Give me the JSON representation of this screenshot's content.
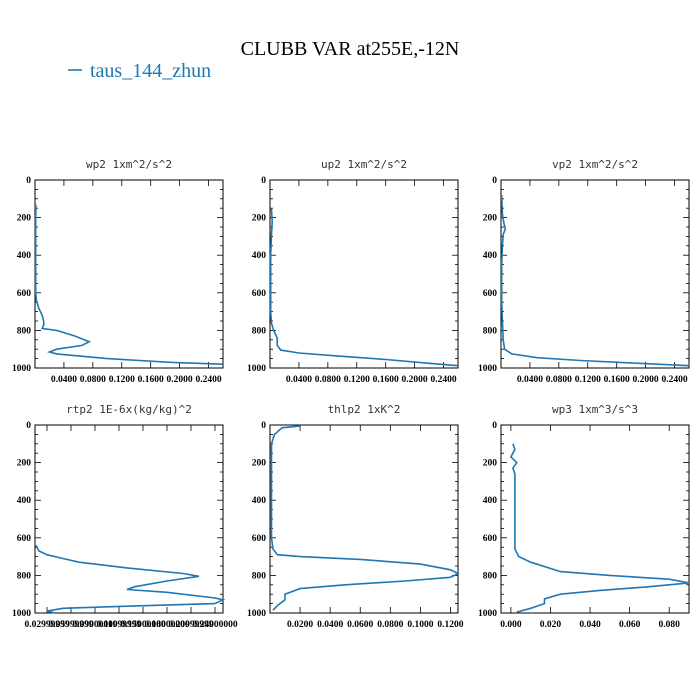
{
  "title": "CLUBB VAR at255E,-12N",
  "legend": {
    "label": "taus_144_zhun",
    "color": "#1f77b4"
  },
  "chart_data": [
    {
      "type": "line",
      "title": "wp2  1xm^2/s^2",
      "ylim": [
        1000,
        0
      ],
      "xlim": [
        0,
        0.26
      ],
      "yticks": [
        0,
        200,
        400,
        600,
        800,
        1000
      ],
      "xticks": [
        0.04,
        0.08,
        0.12,
        0.16,
        0.2,
        0.24
      ],
      "xticklabels": [
        "0.0400",
        "0.0800",
        "0.1200",
        "0.1600",
        "0.2000",
        "0.2400"
      ],
      "series": [
        {
          "values": [
            [
              0.001,
              130
            ],
            [
              0.0012,
              160
            ],
            [
              0.001,
              200
            ],
            [
              0.001,
              250
            ],
            [
              0.001,
              320
            ],
            [
              0.001,
              400
            ],
            [
              0.001,
              500
            ],
            [
              0.001,
              600
            ],
            [
              0.002,
              640
            ],
            [
              0.005,
              680
            ],
            [
              0.01,
              720
            ],
            [
              0.012,
              750
            ],
            [
              0.012,
              770
            ],
            [
              0.01,
              790
            ],
            [
              0.03,
              800
            ],
            [
              0.055,
              830
            ],
            [
              0.075,
              860
            ],
            [
              0.065,
              880
            ],
            [
              0.03,
              900
            ],
            [
              0.02,
              915
            ],
            [
              0.03,
              925
            ],
            [
              0.1,
              950
            ],
            [
              0.19,
              970
            ],
            [
              0.26,
              980
            ]
          ]
        }
      ]
    },
    {
      "type": "line",
      "title": "up2  1xm^2/s^2",
      "ylim": [
        1000,
        0
      ],
      "xlim": [
        0,
        0.26
      ],
      "yticks": [
        0,
        200,
        400,
        600,
        800,
        1000
      ],
      "xticks": [
        0.04,
        0.08,
        0.12,
        0.16,
        0.2,
        0.24
      ],
      "xticklabels": [
        "0.0400",
        "0.0800",
        "0.1200",
        "0.1600",
        "0.2000",
        "0.2400"
      ],
      "series": [
        {
          "values": [
            [
              0.002,
              150
            ],
            [
              0.003,
              220
            ],
            [
              0.002,
              300
            ],
            [
              0.001,
              400
            ],
            [
              0.001,
              500
            ],
            [
              0.001,
              600
            ],
            [
              0.001,
              700
            ],
            [
              0.002,
              760
            ],
            [
              0.005,
              800
            ],
            [
              0.01,
              840
            ],
            [
              0.01,
              880
            ],
            [
              0.015,
              905
            ],
            [
              0.04,
              920
            ],
            [
              0.09,
              935
            ],
            [
              0.16,
              955
            ],
            [
              0.22,
              975
            ],
            [
              0.26,
              988
            ]
          ]
        }
      ]
    },
    {
      "type": "line",
      "title": "vp2  1xm^2/s^2",
      "ylim": [
        1000,
        0
      ],
      "xlim": [
        0,
        0.26
      ],
      "yticks": [
        0,
        200,
        400,
        600,
        800,
        1000
      ],
      "xticks": [
        0.04,
        0.08,
        0.12,
        0.16,
        0.2,
        0.24
      ],
      "xticklabels": [
        "0.0400",
        "0.0800",
        "0.1200",
        "0.1600",
        "0.2000",
        "0.2400"
      ],
      "series": [
        {
          "values": [
            [
              0.001,
              80
            ],
            [
              0.002,
              180
            ],
            [
              0.004,
              230
            ],
            [
              0.006,
              260
            ],
            [
              0.003,
              290
            ],
            [
              0.002,
              350
            ],
            [
              0.001,
              450
            ],
            [
              0.001,
              550
            ],
            [
              0.001,
              650
            ],
            [
              0.002,
              750
            ],
            [
              0.003,
              850
            ],
            [
              0.005,
              900
            ],
            [
              0.015,
              925
            ],
            [
              0.05,
              945
            ],
            [
              0.11,
              960
            ],
            [
              0.19,
              975
            ],
            [
              0.26,
              988
            ]
          ]
        }
      ]
    },
    {
      "type": "line",
      "title": "rtp2  1E-6x(kg/kg)^2",
      "ylim": [
        1000,
        0
      ],
      "xlim": [
        0.015,
        0.25
      ],
      "yticks": [
        0,
        200,
        400,
        600,
        800,
        1000
      ],
      "xticks": [
        0.03,
        0.06,
        0.09,
        0.12,
        0.15,
        0.18,
        0.21,
        0.24
      ],
      "xticklabels": [
        "0.02999999",
        "0.05999999",
        "0.09000000",
        "0.11999999",
        "0.15000000",
        "0.18000000",
        "0.20999999",
        "0.24000000"
      ],
      "series": [
        {
          "values": [
            [
              0.016,
              640
            ],
            [
              0.02,
              670
            ],
            [
              0.03,
              690
            ],
            [
              0.05,
              710
            ],
            [
              0.07,
              730
            ],
            [
              0.13,
              760
            ],
            [
              0.2,
              790
            ],
            [
              0.22,
              805
            ],
            [
              0.18,
              830
            ],
            [
              0.14,
              860
            ],
            [
              0.13,
              875
            ],
            [
              0.18,
              890
            ],
            [
              0.24,
              920
            ],
            [
              0.25,
              930
            ],
            [
              0.24,
              950
            ],
            [
              0.12,
              965
            ],
            [
              0.05,
              975
            ],
            [
              0.03,
              990
            ],
            [
              0.04,
              1000
            ]
          ]
        }
      ]
    },
    {
      "type": "line",
      "title": "thlp2  1xK^2",
      "ylim": [
        1000,
        0
      ],
      "xlim": [
        0,
        0.125
      ],
      "yticks": [
        0,
        200,
        400,
        600,
        800,
        1000
      ],
      "xticks": [
        0.02,
        0.04,
        0.06,
        0.08,
        0.1,
        0.12
      ],
      "xticklabels": [
        "0.0200",
        "0.0400",
        "0.0600",
        "0.0800",
        "0.1000",
        "0.1200"
      ],
      "series": [
        {
          "values": [
            [
              0.02,
              5
            ],
            [
              0.008,
              15
            ],
            [
              0.003,
              50
            ],
            [
              0.001,
              100
            ],
            [
              0.001,
              200
            ],
            [
              0.001,
              300
            ],
            [
              0.001,
              400
            ],
            [
              0.001,
              500
            ],
            [
              0.001,
              600
            ],
            [
              0.002,
              660
            ],
            [
              0.005,
              690
            ],
            [
              0.02,
              700
            ],
            [
              0.06,
              715
            ],
            [
              0.1,
              740
            ],
            [
              0.12,
              770
            ],
            [
              0.125,
              790
            ],
            [
              0.12,
              810
            ],
            [
              0.09,
              830
            ],
            [
              0.05,
              850
            ],
            [
              0.02,
              870
            ],
            [
              0.01,
              900
            ],
            [
              0.01,
              930
            ],
            [
              0.005,
              960
            ],
            [
              0.002,
              985
            ]
          ]
        }
      ]
    },
    {
      "type": "line",
      "title": "wp3  1xm^3/s^3",
      "ylim": [
        1000,
        0
      ],
      "xlim": [
        -0.005,
        0.09
      ],
      "yticks": [
        0,
        200,
        400,
        600,
        800,
        1000
      ],
      "xticks": [
        0.0,
        0.02,
        0.04,
        0.06,
        0.08
      ],
      "xticklabels": [
        "0.000",
        "0.020",
        "0.040",
        "0.060",
        "0.080"
      ],
      "series": [
        {
          "values": [
            [
              0.001,
              100
            ],
            [
              0.002,
              130
            ],
            [
              0.0,
              170
            ],
            [
              0.003,
              200
            ],
            [
              0.001,
              230
            ],
            [
              0.002,
              260
            ],
            [
              0.002,
              300
            ],
            [
              0.002,
              400
            ],
            [
              0.002,
              500
            ],
            [
              0.002,
              600
            ],
            [
              0.002,
              660
            ],
            [
              0.004,
              700
            ],
            [
              0.01,
              730
            ],
            [
              0.025,
              780
            ],
            [
              0.05,
              800
            ],
            [
              0.08,
              820
            ],
            [
              0.09,
              840
            ],
            [
              0.07,
              860
            ],
            [
              0.045,
              880
            ],
            [
              0.025,
              900
            ],
            [
              0.017,
              925
            ],
            [
              0.017,
              950
            ],
            [
              0.01,
              975
            ],
            [
              0.003,
              995
            ]
          ]
        }
      ]
    }
  ]
}
